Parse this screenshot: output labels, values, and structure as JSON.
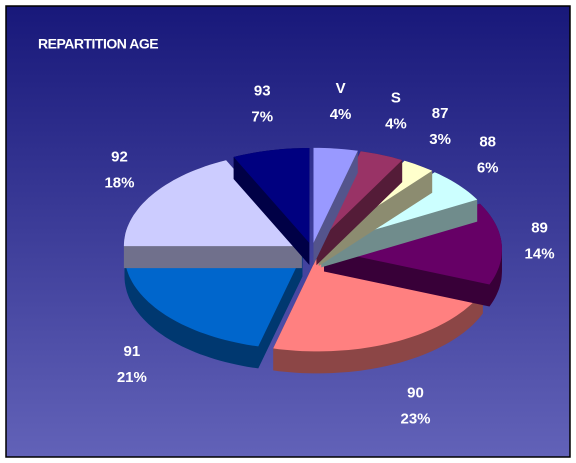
{
  "chart_data": {
    "type": "pie3d",
    "title": "REPARTITION AGE",
    "categories": [
      "V",
      "S",
      "87",
      "88",
      "89",
      "90",
      "91",
      "92",
      "93"
    ],
    "values": [
      4,
      4,
      3,
      6,
      14,
      23,
      21,
      18,
      7
    ],
    "value_labels": [
      "4%",
      "4%",
      "3%",
      "6%",
      "14%",
      "23%",
      "21%",
      "18%",
      "7%"
    ],
    "colors": [
      "#9999ff",
      "#993366",
      "#ffffcc",
      "#ccffff",
      "#660066",
      "#ff8080",
      "#0066cc",
      "#ccccff",
      "#000080"
    ]
  }
}
